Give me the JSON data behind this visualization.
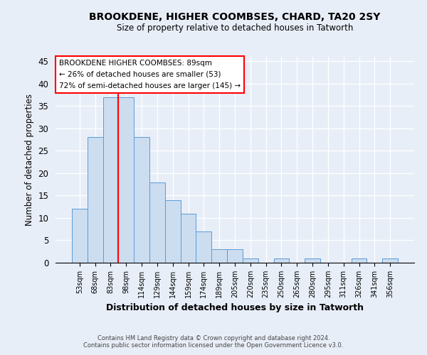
{
  "title1": "BROOKDENE, HIGHER COOMBSES, CHARD, TA20 2SY",
  "title2": "Size of property relative to detached houses in Tatworth",
  "xlabel": "Distribution of detached houses by size in Tatworth",
  "ylabel": "Number of detached properties",
  "categories": [
    "53sqm",
    "68sqm",
    "83sqm",
    "98sqm",
    "114sqm",
    "129sqm",
    "144sqm",
    "159sqm",
    "174sqm",
    "189sqm",
    "205sqm",
    "220sqm",
    "235sqm",
    "250sqm",
    "265sqm",
    "280sqm",
    "295sqm",
    "311sqm",
    "326sqm",
    "341sqm",
    "356sqm"
  ],
  "values": [
    12,
    28,
    37,
    37,
    28,
    18,
    14,
    11,
    7,
    3,
    3,
    1,
    0,
    1,
    0,
    1,
    0,
    0,
    1,
    0,
    1
  ],
  "bar_color": "#ccddf0",
  "bar_edge_color": "#5b9bd5",
  "red_line_x": 2.5,
  "annotation_title": "BROOKDENE HIGHER COOMBSES: 89sqm",
  "annotation_line1": "← 26% of detached houses are smaller (53)",
  "annotation_line2": "72% of semi-detached houses are larger (145) →",
  "ylim": [
    0,
    46
  ],
  "yticks": [
    0,
    5,
    10,
    15,
    20,
    25,
    30,
    35,
    40,
    45
  ],
  "footnote1": "Contains HM Land Registry data © Crown copyright and database right 2024.",
  "footnote2": "Contains public sector information licensed under the Open Government Licence v3.0.",
  "bg_color": "#e8eef8"
}
